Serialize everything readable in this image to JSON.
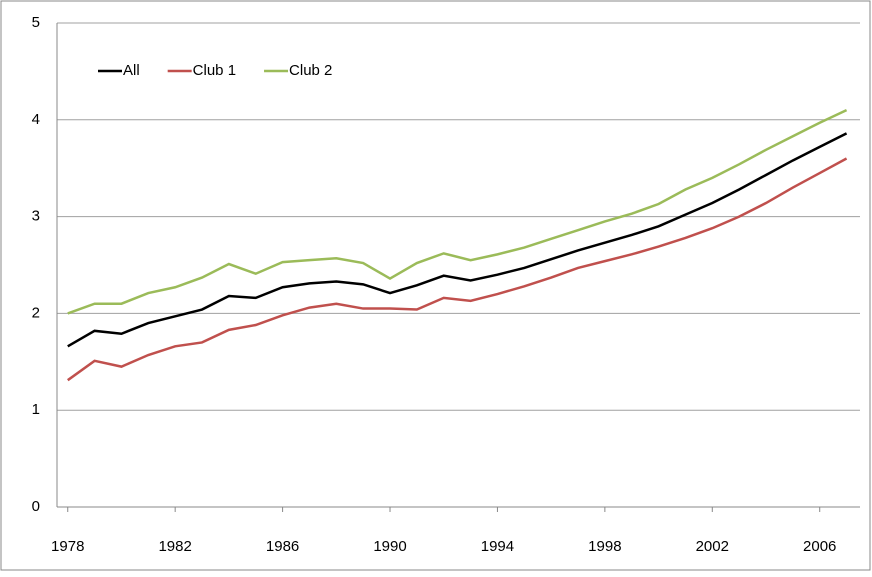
{
  "chart_data": {
    "type": "line",
    "x": [
      1978,
      1979,
      1980,
      1981,
      1982,
      1983,
      1984,
      1985,
      1986,
      1987,
      1988,
      1989,
      1990,
      1991,
      1992,
      1993,
      1994,
      1995,
      1996,
      1997,
      1998,
      1999,
      2000,
      2001,
      2002,
      2003,
      2004,
      2005,
      2006,
      2007
    ],
    "series": [
      {
        "name": "All",
        "color": "#000000",
        "values": [
          1.66,
          1.82,
          1.79,
          1.9,
          1.97,
          2.04,
          2.18,
          2.16,
          2.27,
          2.31,
          2.33,
          2.3,
          2.21,
          2.29,
          2.39,
          2.34,
          2.4,
          2.47,
          2.56,
          2.65,
          2.73,
          2.81,
          2.9,
          3.02,
          3.14,
          3.28,
          3.43,
          3.58,
          3.72,
          3.86
        ]
      },
      {
        "name": "Club 1",
        "color": "#c0504d",
        "values": [
          1.31,
          1.51,
          1.45,
          1.57,
          1.66,
          1.7,
          1.83,
          1.88,
          1.98,
          2.06,
          2.1,
          2.05,
          2.05,
          2.04,
          2.16,
          2.13,
          2.2,
          2.28,
          2.37,
          2.47,
          2.54,
          2.61,
          2.69,
          2.78,
          2.88,
          3.0,
          3.14,
          3.3,
          3.45,
          3.6
        ]
      },
      {
        "name": "Club 2",
        "color": "#9bbb59",
        "values": [
          2.0,
          2.1,
          2.1,
          2.21,
          2.27,
          2.37,
          2.51,
          2.41,
          2.53,
          2.55,
          2.57,
          2.52,
          2.36,
          2.52,
          2.62,
          2.55,
          2.61,
          2.68,
          2.77,
          2.86,
          2.95,
          3.03,
          3.13,
          3.28,
          3.4,
          3.54,
          3.69,
          3.83,
          3.97,
          4.1
        ]
      }
    ],
    "xlim": [
      1977.6,
      2007.5
    ],
    "xticks": [
      1978,
      1982,
      1986,
      1990,
      1994,
      1998,
      2002,
      2006
    ],
    "ylim": [
      0,
      5
    ],
    "yticks": [
      0,
      1,
      2,
      3,
      4,
      5
    ],
    "grid": true,
    "legend": "top-left"
  }
}
